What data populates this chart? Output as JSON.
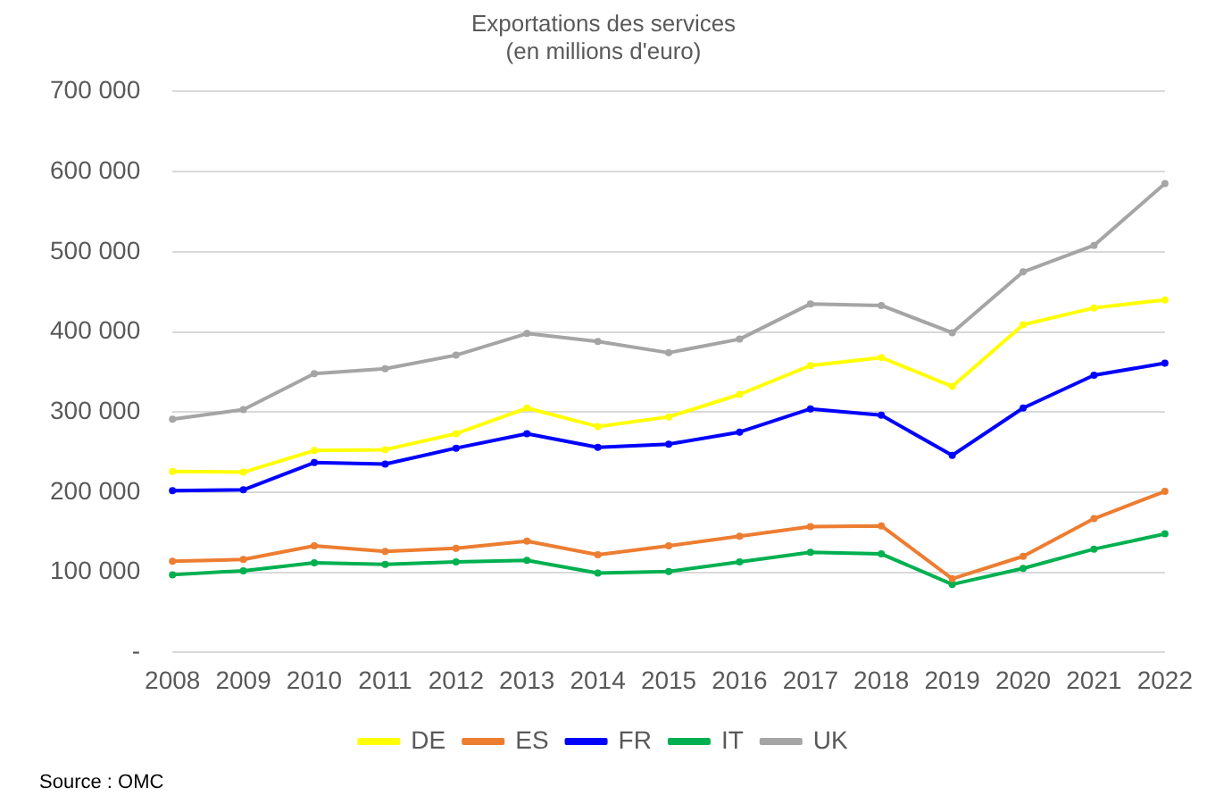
{
  "chart_data": {
    "type": "line",
    "title": "Exportations des services",
    "subtitle": "(en millions d'euro)",
    "categories": [
      "2008",
      "2009",
      "2010",
      "2011",
      "2012",
      "2013",
      "2014",
      "2015",
      "2016",
      "2017",
      "2018",
      "2019",
      "2020",
      "2021",
      "2022"
    ],
    "series": [
      {
        "name": "DE",
        "color": "#ffff00",
        "values": [
          226000,
          225000,
          252000,
          253000,
          273000,
          305000,
          282000,
          294000,
          322000,
          358000,
          368000,
          332000,
          409000,
          430000,
          440000
        ]
      },
      {
        "name": "ES",
        "color": "#ed7d31",
        "values": [
          114000,
          116000,
          133000,
          126000,
          130000,
          139000,
          122000,
          133000,
          145000,
          157000,
          158000,
          92000,
          120000,
          167000,
          201000
        ]
      },
      {
        "name": "FR",
        "color": "#0000ff",
        "values": [
          202000,
          203000,
          237000,
          235000,
          255000,
          273000,
          256000,
          260000,
          275000,
          304000,
          296000,
          246000,
          305000,
          346000,
          361000
        ]
      },
      {
        "name": "IT",
        "color": "#00b050",
        "values": [
          97000,
          102000,
          112000,
          110000,
          113000,
          115000,
          99000,
          101000,
          113000,
          125000,
          123000,
          85000,
          105000,
          129000,
          148000
        ]
      },
      {
        "name": "UK",
        "color": "#a5a5a5",
        "values": [
          291000,
          303000,
          348000,
          354000,
          371000,
          398000,
          388000,
          374000,
          391000,
          435000,
          433000,
          399000,
          475000,
          508000,
          585000
        ]
      }
    ],
    "ylim": [
      0,
      700000
    ],
    "yticks": [
      {
        "value": 0,
        "label": "-"
      },
      {
        "value": 100000,
        "label": "100 000"
      },
      {
        "value": 200000,
        "label": "200 000"
      },
      {
        "value": 300000,
        "label": "300 000"
      },
      {
        "value": 400000,
        "label": "400 000"
      },
      {
        "value": 500000,
        "label": "500 000"
      },
      {
        "value": 600000,
        "label": "600 000"
      },
      {
        "value": 700000,
        "label": "700 000"
      }
    ],
    "grid": "y",
    "legend": "bottom",
    "marker": "circle",
    "line_style": "solid",
    "annotations": [
      "Source : OMC"
    ]
  }
}
